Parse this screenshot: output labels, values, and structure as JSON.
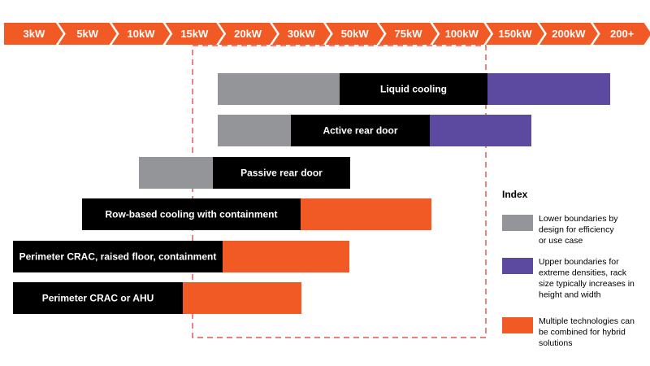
{
  "axis": {
    "labels": [
      "3kW",
      "5kW",
      "10kW",
      "15kW",
      "20kW",
      "30kW",
      "50kW",
      "75kW",
      "100kW",
      "150kW",
      "200kW",
      "200+"
    ]
  },
  "rows": [
    {
      "label": "Liquid cooling"
    },
    {
      "label": "Active rear door"
    },
    {
      "label": "Passive rear door"
    },
    {
      "label": "Row-based cooling with containment"
    },
    {
      "label": "Perimeter CRAC, raised floor, containment"
    },
    {
      "label": "Perimeter CRAC or AHU"
    }
  ],
  "legend": {
    "title": "Index",
    "items": [
      {
        "lines": [
          "Lower boundaries by",
          "design for efficiency",
          "or use case"
        ]
      },
      {
        "lines": [
          "Upper boundaries for",
          "extreme densities, rack",
          "size typically increases in",
          "height and width"
        ]
      },
      {
        "lines": [
          "Multiple technologies can",
          "be combined for hybrid",
          "solutions"
        ]
      }
    ]
  }
}
